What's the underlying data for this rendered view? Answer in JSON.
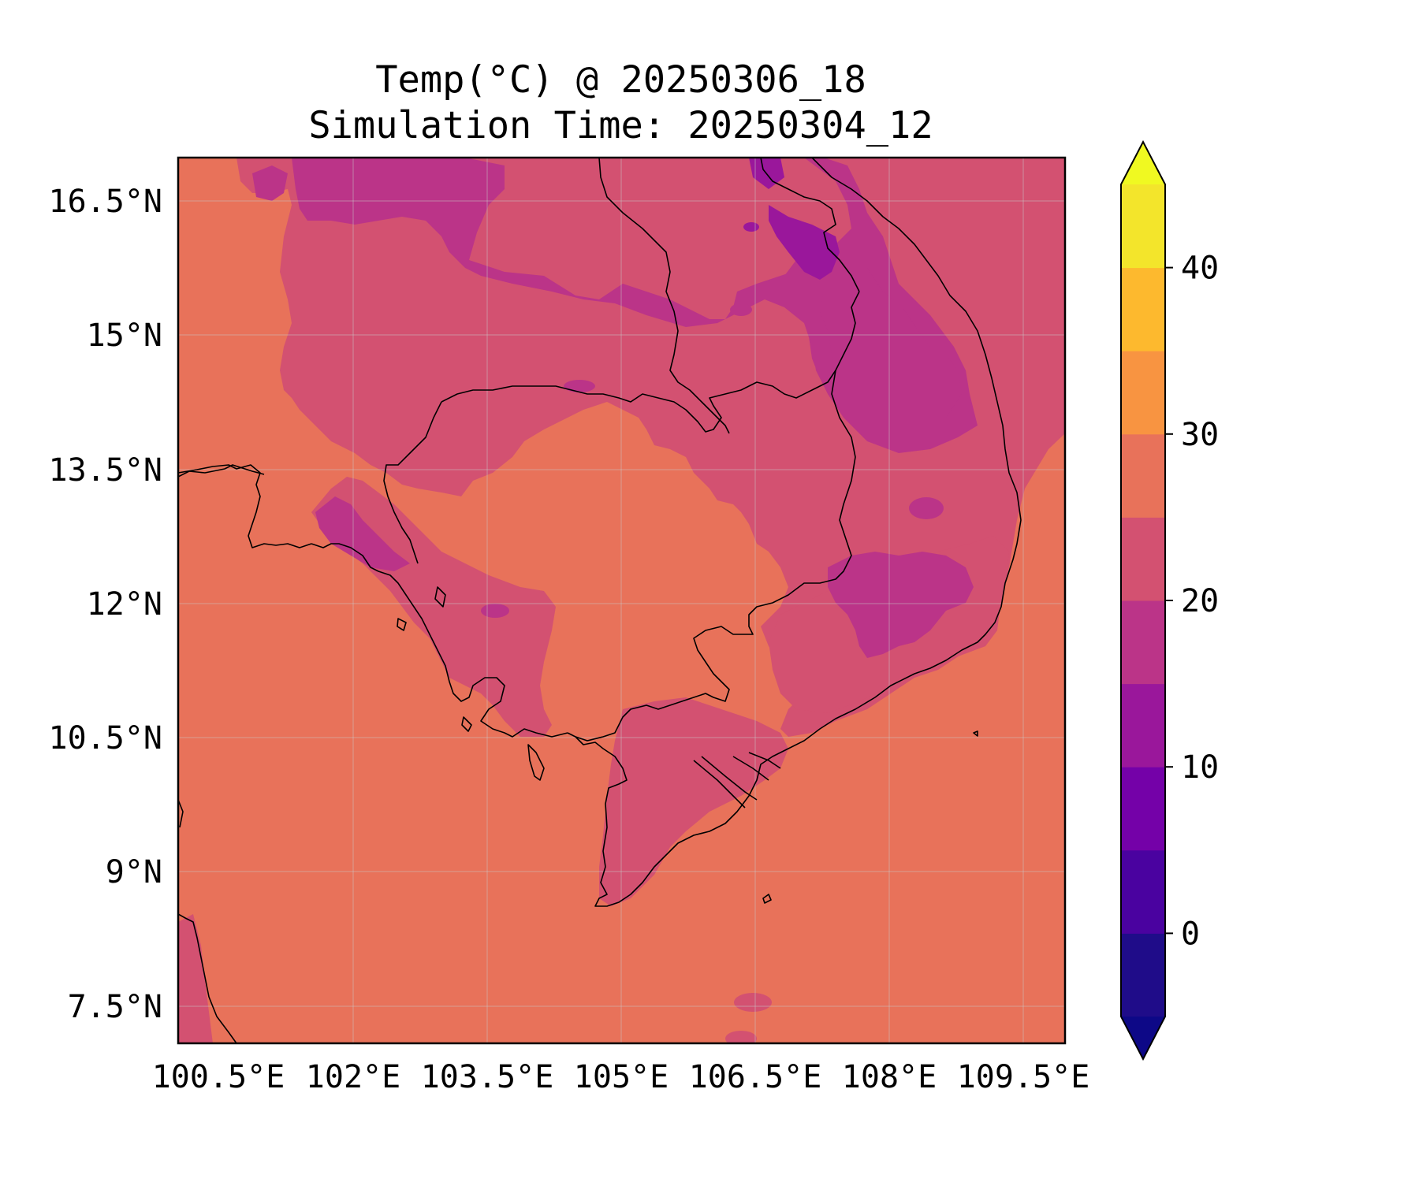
{
  "title": {
    "line1": "Temp(°C) @ 20250306_18",
    "line2": "Simulation Time: 20250304_12"
  },
  "map": {
    "region": "Cambodia / southern Vietnam / Gulf of Thailand",
    "lon_range": [
      100.5,
      110.4
    ],
    "lat_range": [
      7.1,
      17.0
    ],
    "x_tick_labels": [
      "100.5°E",
      "102°E",
      "103.5°E",
      "105°E",
      "106.5°E",
      "108°E",
      "109.5°E"
    ],
    "x_tick_values": [
      100.5,
      102,
      103.5,
      105,
      106.5,
      108,
      109.5
    ],
    "y_tick_labels": [
      "16.5°N",
      "15°N",
      "13.5°N",
      "12°N",
      "10.5°N",
      "9°N",
      "7.5°N"
    ],
    "y_tick_values": [
      16.5,
      15,
      13.5,
      12,
      10.5,
      9,
      7.5
    ],
    "grid": true,
    "coastlines_and_borders": true
  },
  "colorbar": {
    "colormap": "plasma",
    "levels": [
      -5,
      0,
      5,
      10,
      15,
      20,
      25,
      30,
      35,
      40,
      45
    ],
    "tick_labels": [
      "0",
      "10",
      "20",
      "30",
      "40"
    ],
    "tick_values": [
      0,
      10,
      20,
      30,
      40
    ],
    "extend": "both",
    "colors": [
      "#1f0c89",
      "#4a02a0",
      "#7401a8",
      "#9a179b",
      "#bb3488",
      "#d35171",
      "#e8725a",
      "#f89441",
      "#fdb92e",
      "#f3e52b"
    ],
    "under_color": "#0d0887",
    "over_color": "#f0f921"
  },
  "field_colors": {
    "temp_25_30": "#e8725a",
    "temp_20_25": "#d35171",
    "temp_15_20": "#bb3488",
    "temp_10_15": "#9a179b"
  }
}
